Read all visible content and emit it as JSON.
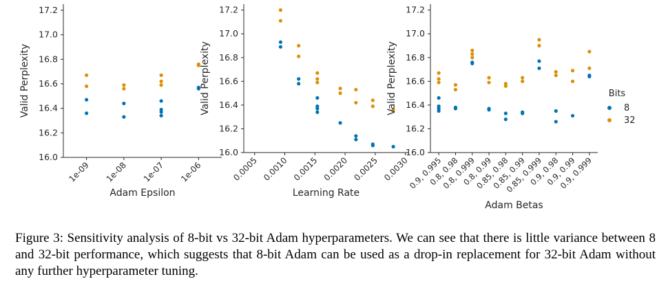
{
  "chart_data": [
    {
      "type": "scatter",
      "xlabel": "Adam Epsilon",
      "ylabel": "Valid Perplexity",
      "x_type": "category",
      "categories": [
        "1e-09",
        "1e-08",
        "1e-07",
        "1e-06"
      ],
      "ylim": [
        16.0,
        17.25
      ],
      "yticks": [
        16.0,
        16.2,
        16.4,
        16.6,
        16.8,
        17.0,
        17.2
      ],
      "tick_labels_rotated": true,
      "grid": false,
      "series": [
        {
          "name": "8",
          "color": "#0173b2",
          "points": [
            {
              "x": "1e-09",
              "y": 16.47
            },
            {
              "x": "1e-09",
              "y": 16.36
            },
            {
              "x": "1e-08",
              "y": 16.44
            },
            {
              "x": "1e-08",
              "y": 16.33
            },
            {
              "x": "1e-07",
              "y": 16.46
            },
            {
              "x": "1e-07",
              "y": 16.37
            },
            {
              "x": "1e-07",
              "y": 16.34
            },
            {
              "x": "1e-07",
              "y": 16.39
            },
            {
              "x": "1e-06",
              "y": 16.57
            },
            {
              "x": "1e-06",
              "y": 16.56
            }
          ]
        },
        {
          "name": "32",
          "color": "#de8f05",
          "points": [
            {
              "x": "1e-09",
              "y": 16.58
            },
            {
              "x": "1e-09",
              "y": 16.67
            },
            {
              "x": "1e-08",
              "y": 16.56
            },
            {
              "x": "1e-08",
              "y": 16.59
            },
            {
              "x": "1e-07",
              "y": 16.67
            },
            {
              "x": "1e-07",
              "y": 16.67
            },
            {
              "x": "1e-07",
              "y": 16.59
            },
            {
              "x": "1e-07",
              "y": 16.62
            },
            {
              "x": "1e-06",
              "y": 16.76
            },
            {
              "x": "1e-06",
              "y": 16.75
            }
          ]
        }
      ]
    },
    {
      "type": "scatter",
      "xlabel": "Learning Rate",
      "ylabel": "Valid Perplexity",
      "x_type": "linear",
      "xlim": [
        0.00032,
        0.00305
      ],
      "xticks": [
        0.0005,
        0.001,
        0.0015,
        0.002,
        0.0025,
        0.003
      ],
      "xtick_labels": [
        "0.0005",
        "0.0010",
        "0.0015",
        "0.0020",
        "0.0025",
        "0.0030"
      ],
      "ylim": [
        16.0,
        17.25
      ],
      "yticks": [
        16.0,
        16.2,
        16.4,
        16.6,
        16.8,
        17.0,
        17.2
      ],
      "tick_labels_rotated": true,
      "grid": false,
      "series": [
        {
          "name": "8",
          "color": "#0173b2",
          "points": [
            {
              "x": 0.00093,
              "y": 16.93
            },
            {
              "x": 0.00093,
              "y": 16.89
            },
            {
              "x": 0.00123,
              "y": 16.62
            },
            {
              "x": 0.00123,
              "y": 16.58
            },
            {
              "x": 0.00154,
              "y": 16.46
            },
            {
              "x": 0.00154,
              "y": 16.39
            },
            {
              "x": 0.00154,
              "y": 16.37
            },
            {
              "x": 0.00154,
              "y": 16.34
            },
            {
              "x": 0.00192,
              "y": 16.25
            },
            {
              "x": 0.00218,
              "y": 16.14
            },
            {
              "x": 0.00218,
              "y": 16.11
            },
            {
              "x": 0.00246,
              "y": 16.07
            },
            {
              "x": 0.00246,
              "y": 16.06
            },
            {
              "x": 0.0028,
              "y": 16.05
            }
          ]
        },
        {
          "name": "32",
          "color": "#de8f05",
          "points": [
            {
              "x": 0.00093,
              "y": 17.2
            },
            {
              "x": 0.00093,
              "y": 17.11
            },
            {
              "x": 0.00123,
              "y": 16.9
            },
            {
              "x": 0.00123,
              "y": 16.81
            },
            {
              "x": 0.00154,
              "y": 16.67
            },
            {
              "x": 0.00154,
              "y": 16.62
            },
            {
              "x": 0.00154,
              "y": 16.59
            },
            {
              "x": 0.00192,
              "y": 16.54
            },
            {
              "x": 0.00192,
              "y": 16.5
            },
            {
              "x": 0.00218,
              "y": 16.53
            },
            {
              "x": 0.00218,
              "y": 16.42
            },
            {
              "x": 0.00246,
              "y": 16.44
            },
            {
              "x": 0.00246,
              "y": 16.39
            },
            {
              "x": 0.0028,
              "y": 16.36
            }
          ]
        }
      ]
    },
    {
      "type": "scatter",
      "xlabel": "Adam Betas",
      "ylabel": "Valid Perplexity",
      "x_type": "category",
      "categories": [
        "0.9, 0.995",
        "0.8, 0.98",
        "0.8, 0.999",
        "0.8, 0.99",
        "0.85, 0.98",
        "0.85, 0.99",
        "0.85, 0.999",
        "0.9, 0.98",
        "0.9, 0.99",
        "0.9, 0.999"
      ],
      "ylim": [
        16.0,
        17.25
      ],
      "yticks": [
        16.0,
        16.2,
        16.4,
        16.6,
        16.8,
        17.0,
        17.2
      ],
      "tick_labels_rotated": true,
      "grid": false,
      "legend": {
        "title": "Bits",
        "entries": [
          "8",
          "32"
        ],
        "placement": "right"
      },
      "series": [
        {
          "name": "8",
          "color": "#0173b2",
          "points": [
            {
              "x": "0.9, 0.995",
              "y": 16.46
            },
            {
              "x": "0.9, 0.995",
              "y": 16.39
            },
            {
              "x": "0.9, 0.995",
              "y": 16.37
            },
            {
              "x": "0.9, 0.995",
              "y": 16.35
            },
            {
              "x": "0.8, 0.98",
              "y": 16.38
            },
            {
              "x": "0.8, 0.98",
              "y": 16.37
            },
            {
              "x": "0.8, 0.999",
              "y": 16.76
            },
            {
              "x": "0.8, 0.999",
              "y": 16.75
            },
            {
              "x": "0.8, 0.99",
              "y": 16.37
            },
            {
              "x": "0.8, 0.99",
              "y": 16.36
            },
            {
              "x": "0.85, 0.98",
              "y": 16.33
            },
            {
              "x": "0.85, 0.98",
              "y": 16.28
            },
            {
              "x": "0.85, 0.99",
              "y": 16.34
            },
            {
              "x": "0.85, 0.99",
              "y": 16.33
            },
            {
              "x": "0.85, 0.999",
              "y": 16.77
            },
            {
              "x": "0.85, 0.999",
              "y": 16.71
            },
            {
              "x": "0.9, 0.98",
              "y": 16.35
            },
            {
              "x": "0.9, 0.98",
              "y": 16.26
            },
            {
              "x": "0.9, 0.99",
              "y": 16.31
            },
            {
              "x": "0.9, 0.999",
              "y": 16.65
            },
            {
              "x": "0.9, 0.999",
              "y": 16.64
            }
          ]
        },
        {
          "name": "32",
          "color": "#de8f05",
          "points": [
            {
              "x": "0.9, 0.995",
              "y": 16.67
            },
            {
              "x": "0.9, 0.995",
              "y": 16.62
            },
            {
              "x": "0.9, 0.995",
              "y": 16.59
            },
            {
              "x": "0.8, 0.98",
              "y": 16.57
            },
            {
              "x": "0.8, 0.98",
              "y": 16.53
            },
            {
              "x": "0.8, 0.999",
              "y": 16.86
            },
            {
              "x": "0.8, 0.999",
              "y": 16.83
            },
            {
              "x": "0.8, 0.999",
              "y": 16.8
            },
            {
              "x": "0.8, 0.99",
              "y": 16.63
            },
            {
              "x": "0.8, 0.99",
              "y": 16.59
            },
            {
              "x": "0.85, 0.98",
              "y": 16.58
            },
            {
              "x": "0.85, 0.98",
              "y": 16.56
            },
            {
              "x": "0.85, 0.99",
              "y": 16.63
            },
            {
              "x": "0.85, 0.99",
              "y": 16.6
            },
            {
              "x": "0.85, 0.999",
              "y": 16.95
            },
            {
              "x": "0.85, 0.999",
              "y": 16.9
            },
            {
              "x": "0.9, 0.98",
              "y": 16.68
            },
            {
              "x": "0.9, 0.98",
              "y": 16.65
            },
            {
              "x": "0.9, 0.99",
              "y": 16.69
            },
            {
              "x": "0.9, 0.99",
              "y": 16.6
            },
            {
              "x": "0.9, 0.999",
              "y": 16.85
            },
            {
              "x": "0.9, 0.999",
              "y": 16.71
            }
          ]
        }
      ]
    }
  ],
  "caption": "Figure 3: Sensitivity analysis of 8-bit vs 32-bit Adam hyperparameters. We can see that there is little variance between 8 and 32-bit performance, which suggests that 8-bit Adam can be used as a drop-in replacement for 32-bit Adam without any further hyperparameter tuning."
}
